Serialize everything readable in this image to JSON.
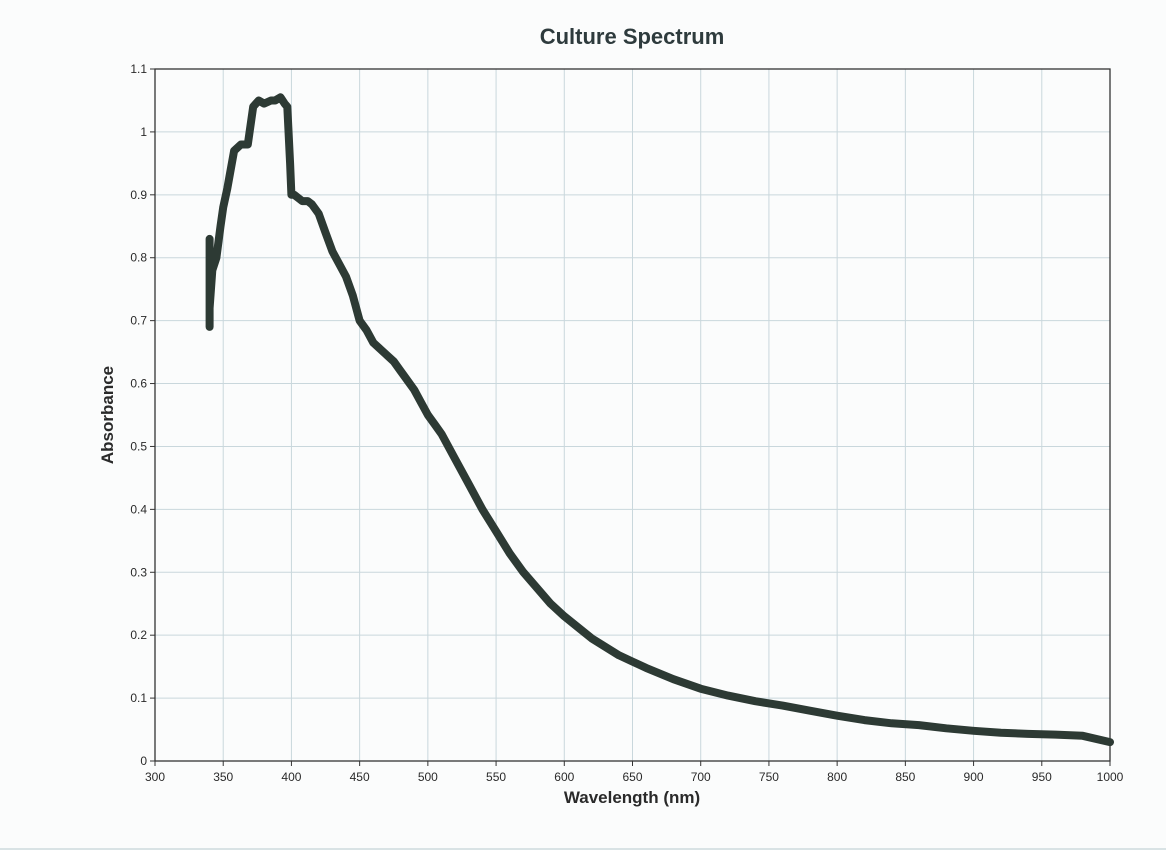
{
  "chart_data": {
    "type": "line",
    "title": "Culture Spectrum",
    "xlabel": "Wavelength (nm)",
    "ylabel": "Absorbance",
    "xlim": [
      300,
      1000
    ],
    "ylim": [
      0,
      1.1
    ],
    "x_ticks": [
      "300",
      "350",
      "400",
      "450",
      "500",
      "550",
      "600",
      "650",
      "700",
      "750",
      "800",
      "850",
      "900",
      "950",
      "1000"
    ],
    "y_ticks": [
      "0",
      "0.1",
      "0.2",
      "0.3",
      "0.4",
      "0.5",
      "0.6",
      "0.7",
      "0.8",
      "0.9",
      "1",
      "1.1"
    ],
    "grid": true,
    "legend": "none",
    "series": [
      {
        "color": "#2d3a34",
        "x": [
          340,
          340,
          340,
          340,
          342,
          345,
          348,
          350,
          353,
          358,
          363,
          368,
          372,
          376,
          380,
          385,
          388,
          392,
          395,
          397,
          399,
          400,
          402,
          405,
          408,
          412,
          415,
          420,
          425,
          430,
          435,
          440,
          445,
          450,
          455,
          460,
          465,
          470,
          475,
          480,
          485,
          490,
          495,
          500,
          505,
          510,
          520,
          530,
          540,
          550,
          560,
          570,
          580,
          590,
          600,
          620,
          640,
          660,
          680,
          700,
          720,
          740,
          760,
          780,
          800,
          820,
          840,
          860,
          880,
          900,
          920,
          940,
          960,
          980,
          1000
        ],
        "y": [
          0.83,
          0.69,
          0.8,
          0.72,
          0.78,
          0.8,
          0.85,
          0.88,
          0.91,
          0.97,
          0.98,
          0.98,
          1.04,
          1.05,
          1.045,
          1.05,
          1.05,
          1.055,
          1.045,
          1.04,
          0.95,
          0.9,
          0.9,
          0.895,
          0.89,
          0.89,
          0.885,
          0.87,
          0.84,
          0.81,
          0.79,
          0.77,
          0.74,
          0.7,
          0.685,
          0.665,
          0.655,
          0.645,
          0.635,
          0.62,
          0.605,
          0.59,
          0.57,
          0.55,
          0.535,
          0.52,
          0.48,
          0.44,
          0.4,
          0.365,
          0.33,
          0.3,
          0.275,
          0.25,
          0.23,
          0.195,
          0.168,
          0.148,
          0.13,
          0.115,
          0.104,
          0.095,
          0.088,
          0.08,
          0.072,
          0.065,
          0.06,
          0.057,
          0.052,
          0.048,
          0.045,
          0.043,
          0.042,
          0.04,
          0.03
        ]
      }
    ]
  }
}
